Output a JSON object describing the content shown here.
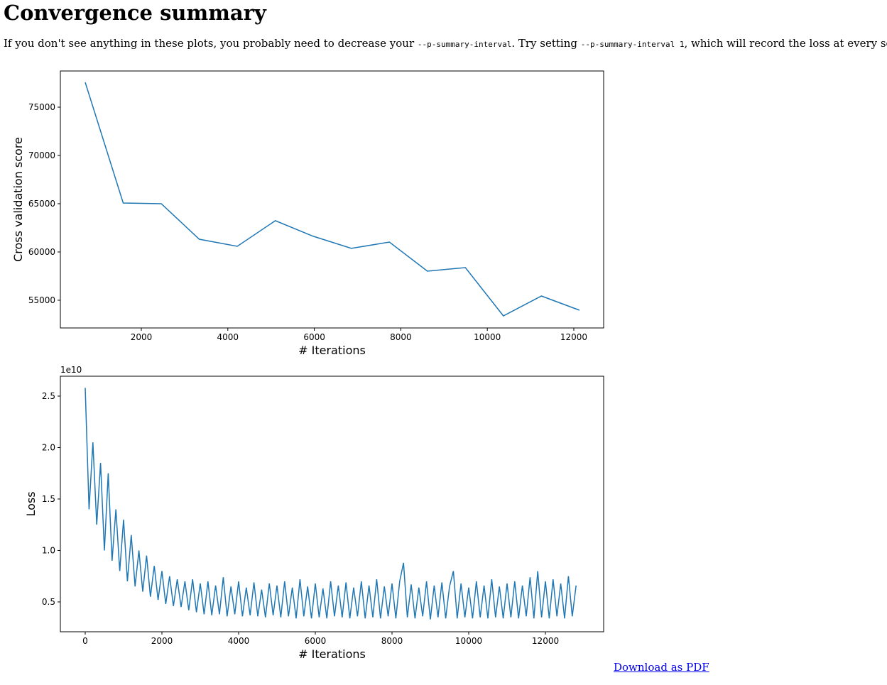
{
  "header": {
    "title": "Convergence summary"
  },
  "paragraph": {
    "parts": [
      {
        "text": "If you don't see anything in these plots, you probably need to decrease your "
      },
      {
        "code": "--p-summary-interval"
      },
      {
        "text": ". Try setting "
      },
      {
        "code": "--p-summary-interval 1"
      },
      {
        "text": ", which will record the loss at every second."
      }
    ]
  },
  "chart_data": [
    {
      "type": "line",
      "xlabel": "# Iterations",
      "ylabel": "Cross validation score",
      "color": "#1f77b4",
      "x": [
        703,
        1582,
        2461,
        3340,
        4219,
        5098,
        5977,
        6856,
        7735,
        8614,
        9493,
        10372,
        11251,
        12130
      ],
      "values": [
        77570,
        65070,
        65000,
        61320,
        60590,
        63240,
        61620,
        60370,
        61030,
        58010,
        58380,
        53380,
        55440,
        53970
      ],
      "xlim": [
        128,
        12690
      ],
      "ylim": [
        52130,
        78750
      ],
      "xticks": [
        2000,
        4000,
        6000,
        8000,
        10000,
        12000
      ],
      "yticks": [
        55000,
        60000,
        65000,
        70000,
        75000
      ]
    },
    {
      "type": "line",
      "xlabel": "# Iterations",
      "ylabel": "Loss",
      "y_offset_label": "1e10",
      "color": "#1f77b4",
      "x": [
        0,
        100,
        200,
        300,
        400,
        500,
        600,
        700,
        800,
        900,
        1000,
        1100,
        1200,
        1300,
        1400,
        1500,
        1600,
        1700,
        1800,
        1900,
        2000,
        2100,
        2200,
        2300,
        2400,
        2500,
        2600,
        2700,
        2800,
        2900,
        3000,
        3100,
        3200,
        3300,
        3400,
        3500,
        3600,
        3700,
        3800,
        3900,
        4000,
        4100,
        4200,
        4300,
        4400,
        4500,
        4600,
        4700,
        4800,
        4900,
        5000,
        5100,
        5200,
        5300,
        5400,
        5500,
        5600,
        5700,
        5800,
        5900,
        6000,
        6100,
        6200,
        6300,
        6400,
        6500,
        6600,
        6700,
        6800,
        6900,
        7000,
        7100,
        7200,
        7300,
        7400,
        7500,
        7600,
        7700,
        7800,
        7900,
        8000,
        8100,
        8200,
        8300,
        8400,
        8500,
        8600,
        8700,
        8800,
        8900,
        9000,
        9100,
        9200,
        9300,
        9400,
        9500,
        9600,
        9700,
        9800,
        9900,
        10000,
        10100,
        10200,
        10300,
        10400,
        10500,
        10600,
        10700,
        10800,
        10900,
        11000,
        11100,
        11200,
        11300,
        11400,
        11500,
        11600,
        11700,
        11800,
        11900,
        12000,
        12100,
        12200,
        12300,
        12400,
        12500,
        12600,
        12700,
        12800
      ],
      "values": [
        2.58,
        1.4,
        2.05,
        1.25,
        1.85,
        1.0,
        1.75,
        0.9,
        1.4,
        0.8,
        1.3,
        0.7,
        1.15,
        0.65,
        1.0,
        0.6,
        0.95,
        0.55,
        0.85,
        0.52,
        0.8,
        0.48,
        0.75,
        0.46,
        0.72,
        0.45,
        0.7,
        0.42,
        0.72,
        0.4,
        0.68,
        0.38,
        0.7,
        0.37,
        0.66,
        0.38,
        0.74,
        0.36,
        0.65,
        0.38,
        0.7,
        0.36,
        0.64,
        0.37,
        0.69,
        0.36,
        0.62,
        0.35,
        0.68,
        0.37,
        0.66,
        0.35,
        0.7,
        0.36,
        0.64,
        0.34,
        0.72,
        0.36,
        0.65,
        0.34,
        0.68,
        0.35,
        0.63,
        0.34,
        0.7,
        0.36,
        0.66,
        0.35,
        0.69,
        0.34,
        0.64,
        0.36,
        0.7,
        0.34,
        0.66,
        0.35,
        0.72,
        0.34,
        0.65,
        0.36,
        0.68,
        0.34,
        0.7,
        0.88,
        0.35,
        0.67,
        0.34,
        0.64,
        0.36,
        0.7,
        0.33,
        0.66,
        0.35,
        0.69,
        0.34,
        0.65,
        0.8,
        0.34,
        0.68,
        0.35,
        0.64,
        0.34,
        0.7,
        0.35,
        0.66,
        0.34,
        0.72,
        0.35,
        0.65,
        0.34,
        0.68,
        0.35,
        0.7,
        0.34,
        0.66,
        0.36,
        0.74,
        0.34,
        0.8,
        0.35,
        0.7,
        0.34,
        0.72,
        0.36,
        0.68,
        0.34,
        0.75,
        0.36,
        0.66
      ],
      "xlim": [
        -648,
        13518
      ],
      "ylim": [
        0.21,
        2.693
      ],
      "xticks": [
        0,
        2000,
        4000,
        6000,
        8000,
        10000,
        12000
      ],
      "yticks": [
        0.5,
        {
          "value": 1.0,
          "label": "1.0"
        },
        1.5,
        {
          "value": 2.0,
          "label": "2.0"
        },
        2.5
      ]
    }
  ],
  "footer": {
    "link": "Download as PDF"
  }
}
